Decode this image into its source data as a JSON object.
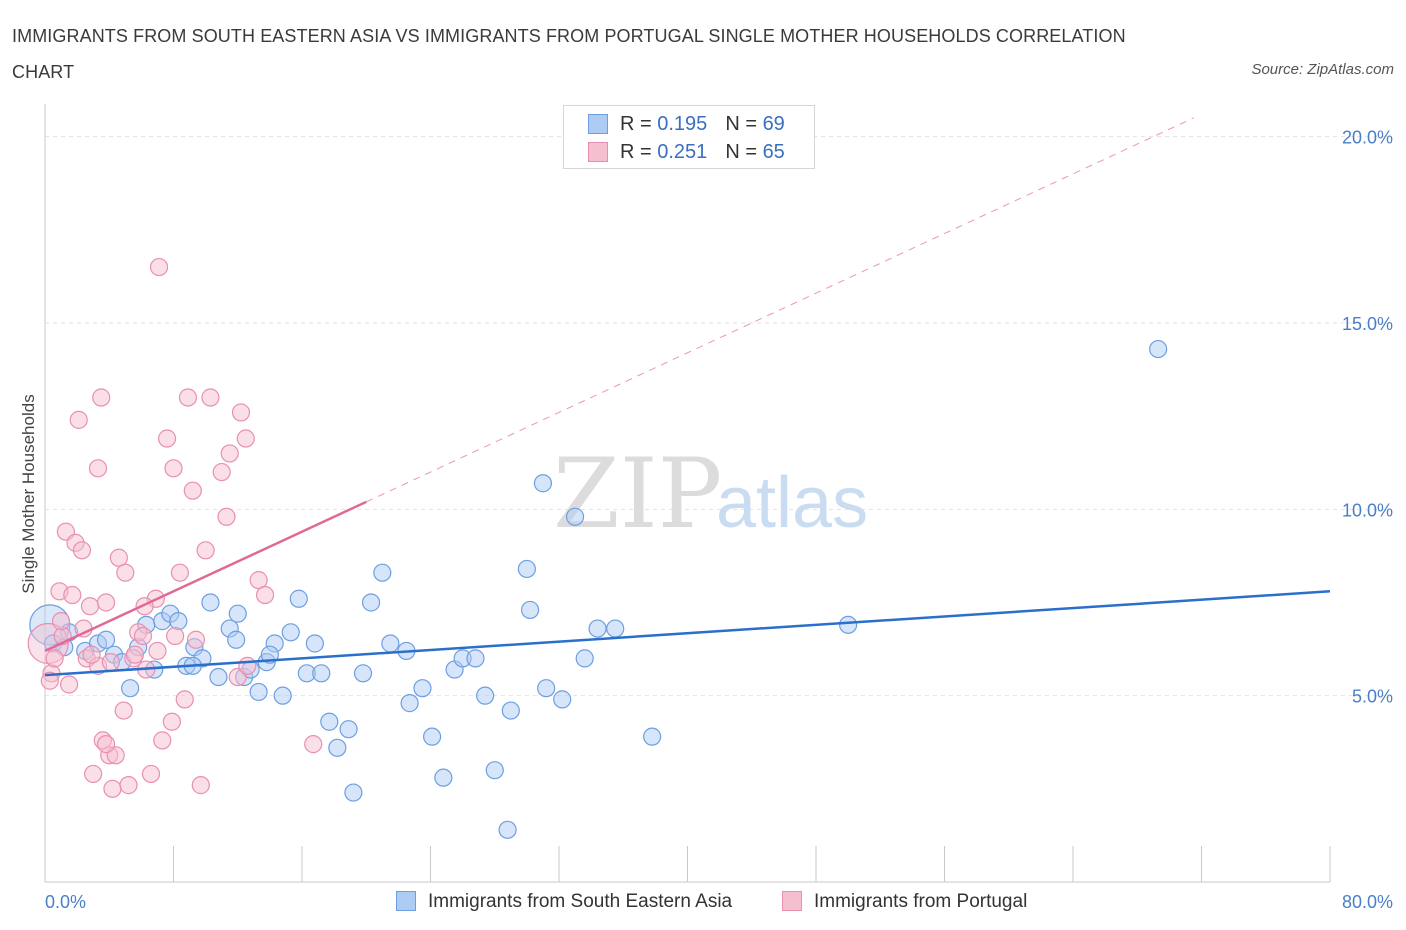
{
  "title": "IMMIGRANTS FROM SOUTH EASTERN ASIA VS IMMIGRANTS FROM PORTUGAL SINGLE MOTHER HOUSEHOLDS CORRELATION CHART",
  "source": "Source: ZipAtlas.com",
  "watermark": {
    "zip": "ZIP",
    "atlas": "atlas"
  },
  "legend": {
    "r_label": "R =",
    "n_label": "N =",
    "rows": [
      {
        "r": "0.195",
        "n": "69"
      },
      {
        "r": "0.251",
        "n": "65"
      }
    ]
  },
  "bottom_legend": [
    {
      "label": "Immigrants from South Eastern Asia"
    },
    {
      "label": "Immigrants from Portugal"
    }
  ],
  "colors": {
    "blue_fill": "#aecbf3",
    "blue_stroke": "#6d9fe0",
    "blue_line": "#2a6fcb",
    "pink_fill": "#f5bfd0",
    "pink_stroke": "#e98fb0",
    "pink_line": "#e06a97",
    "axis_text": "#4a7fc8",
    "grid": "#e2e2e2"
  },
  "chart_data": {
    "type": "scatter",
    "title": "IMMIGRANTS FROM SOUTH EASTERN ASIA VS IMMIGRANTS FROM PORTUGAL SINGLE MOTHER HOUSEHOLDS CORRELATION CHART",
    "xlabel": "",
    "ylabel": "Single Mother Households",
    "xlim": [
      0,
      80
    ],
    "ylim": [
      0,
      20.5
    ],
    "x_tick_labels": [
      "0.0%",
      "80.0%"
    ],
    "y_ticks": [
      5,
      10,
      15,
      20
    ],
    "y_tick_labels": [
      "5.0%",
      "10.0%",
      "15.0%",
      "20.0%"
    ],
    "grid": true,
    "series": [
      {
        "name": "Immigrants from South Eastern Asia",
        "color": "#6d9fe0",
        "trend": {
          "x0": 0,
          "y0": 5.55,
          "x1": 80,
          "y1": 7.8,
          "style": "solid"
        },
        "points": [
          {
            "x": 0.3,
            "y": 6.9,
            "big": true
          },
          {
            "x": 0.5,
            "y": 6.4
          },
          {
            "x": 1.2,
            "y": 6.3
          },
          {
            "x": 1.5,
            "y": 6.7
          },
          {
            "x": 2.5,
            "y": 6.2
          },
          {
            "x": 3.3,
            "y": 6.4
          },
          {
            "x": 3.8,
            "y": 6.5
          },
          {
            "x": 4.3,
            "y": 6.1
          },
          {
            "x": 4.8,
            "y": 5.9
          },
          {
            "x": 5.3,
            "y": 5.2
          },
          {
            "x": 5.8,
            "y": 6.3
          },
          {
            "x": 6.3,
            "y": 6.9
          },
          {
            "x": 6.8,
            "y": 5.7
          },
          {
            "x": 7.3,
            "y": 7.0
          },
          {
            "x": 7.8,
            "y": 7.2
          },
          {
            "x": 8.3,
            "y": 7.0
          },
          {
            "x": 8.8,
            "y": 5.8
          },
          {
            "x": 9.3,
            "y": 6.3
          },
          {
            "x": 9.8,
            "y": 6.0
          },
          {
            "x": 10.3,
            "y": 7.5
          },
          {
            "x": 10.8,
            "y": 5.5
          },
          {
            "x": 11.5,
            "y": 6.8
          },
          {
            "x": 11.9,
            "y": 6.5
          },
          {
            "x": 12.4,
            "y": 5.5
          },
          {
            "x": 12.8,
            "y": 5.7
          },
          {
            "x": 13.3,
            "y": 5.1
          },
          {
            "x": 13.8,
            "y": 5.9
          },
          {
            "x": 14.3,
            "y": 6.4
          },
          {
            "x": 14.8,
            "y": 5.0
          },
          {
            "x": 15.3,
            "y": 6.7
          },
          {
            "x": 15.8,
            "y": 7.6
          },
          {
            "x": 16.3,
            "y": 5.6
          },
          {
            "x": 16.8,
            "y": 6.4
          },
          {
            "x": 17.2,
            "y": 5.6
          },
          {
            "x": 17.7,
            "y": 4.3
          },
          {
            "x": 18.2,
            "y": 3.6
          },
          {
            "x": 18.9,
            "y": 4.1
          },
          {
            "x": 19.2,
            "y": 2.4
          },
          {
            "x": 19.8,
            "y": 5.6
          },
          {
            "x": 20.3,
            "y": 7.5
          },
          {
            "x": 21.0,
            "y": 8.3
          },
          {
            "x": 21.5,
            "y": 6.4
          },
          {
            "x": 22.5,
            "y": 6.2
          },
          {
            "x": 22.7,
            "y": 4.8
          },
          {
            "x": 23.5,
            "y": 5.2
          },
          {
            "x": 24.1,
            "y": 3.9
          },
          {
            "x": 24.8,
            "y": 2.8
          },
          {
            "x": 25.5,
            "y": 5.7
          },
          {
            "x": 26.0,
            "y": 6.0
          },
          {
            "x": 26.8,
            "y": 6.0
          },
          {
            "x": 27.4,
            "y": 5.0
          },
          {
            "x": 28.0,
            "y": 3.0
          },
          {
            "x": 29.0,
            "y": 4.6
          },
          {
            "x": 30.2,
            "y": 7.3
          },
          {
            "x": 31.2,
            "y": 5.2
          },
          {
            "x": 32.2,
            "y": 4.9
          },
          {
            "x": 33.0,
            "y": 9.8
          },
          {
            "x": 33.6,
            "y": 6.0
          },
          {
            "x": 35.5,
            "y": 6.8
          },
          {
            "x": 37.8,
            "y": 3.9
          },
          {
            "x": 50.0,
            "y": 6.9
          },
          {
            "x": 69.3,
            "y": 14.3
          },
          {
            "x": 28.8,
            "y": 1.4
          },
          {
            "x": 31.0,
            "y": 10.7
          },
          {
            "x": 30.0,
            "y": 8.4
          },
          {
            "x": 34.4,
            "y": 6.8
          },
          {
            "x": 9.2,
            "y": 5.8
          },
          {
            "x": 12.0,
            "y": 7.2
          },
          {
            "x": 14.0,
            "y": 6.1
          }
        ]
      },
      {
        "name": "Immigrants from Portugal",
        "color": "#e98fb0",
        "trend": {
          "x0": 0,
          "y0": 6.2,
          "x1": 20,
          "y1": 10.2,
          "style": "solid",
          "dash_to": {
            "x": 80,
            "y": 22.2
          }
        },
        "points": [
          {
            "x": 0.2,
            "y": 6.4,
            "big": true
          },
          {
            "x": 0.4,
            "y": 5.6
          },
          {
            "x": 0.6,
            "y": 6.0
          },
          {
            "x": 0.9,
            "y": 7.8
          },
          {
            "x": 1.1,
            "y": 6.6
          },
          {
            "x": 1.3,
            "y": 9.4
          },
          {
            "x": 1.5,
            "y": 5.3
          },
          {
            "x": 1.7,
            "y": 7.7
          },
          {
            "x": 1.9,
            "y": 9.1
          },
          {
            "x": 2.1,
            "y": 12.4
          },
          {
            "x": 2.3,
            "y": 8.9
          },
          {
            "x": 2.6,
            "y": 6.0
          },
          {
            "x": 2.8,
            "y": 7.4
          },
          {
            "x": 3.0,
            "y": 2.9
          },
          {
            "x": 3.3,
            "y": 5.8
          },
          {
            "x": 3.3,
            "y": 11.1
          },
          {
            "x": 3.5,
            "y": 13.0
          },
          {
            "x": 3.6,
            "y": 3.8
          },
          {
            "x": 3.8,
            "y": 7.5
          },
          {
            "x": 4.0,
            "y": 3.4
          },
          {
            "x": 4.2,
            "y": 2.5
          },
          {
            "x": 4.4,
            "y": 3.4
          },
          {
            "x": 4.6,
            "y": 8.7
          },
          {
            "x": 4.9,
            "y": 4.6
          },
          {
            "x": 5.0,
            "y": 8.3
          },
          {
            "x": 5.2,
            "y": 2.6
          },
          {
            "x": 5.5,
            "y": 6.0
          },
          {
            "x": 5.8,
            "y": 6.7
          },
          {
            "x": 6.1,
            "y": 6.6
          },
          {
            "x": 6.3,
            "y": 5.7
          },
          {
            "x": 6.6,
            "y": 2.9
          },
          {
            "x": 6.9,
            "y": 7.6
          },
          {
            "x": 7.1,
            "y": 16.5
          },
          {
            "x": 7.3,
            "y": 3.8
          },
          {
            "x": 7.6,
            "y": 11.9
          },
          {
            "x": 7.9,
            "y": 4.3
          },
          {
            "x": 8.1,
            "y": 6.6
          },
          {
            "x": 8.4,
            "y": 8.3
          },
          {
            "x": 8.7,
            "y": 4.9
          },
          {
            "x": 8.9,
            "y": 13.0
          },
          {
            "x": 9.2,
            "y": 10.5
          },
          {
            "x": 9.4,
            "y": 6.5
          },
          {
            "x": 9.7,
            "y": 2.6
          },
          {
            "x": 10.0,
            "y": 8.9
          },
          {
            "x": 10.3,
            "y": 13.0
          },
          {
            "x": 11.0,
            "y": 11.0
          },
          {
            "x": 11.3,
            "y": 9.8
          },
          {
            "x": 11.5,
            "y": 11.5
          },
          {
            "x": 12.0,
            "y": 5.5
          },
          {
            "x": 12.2,
            "y": 12.6
          },
          {
            "x": 12.5,
            "y": 11.9
          },
          {
            "x": 13.3,
            "y": 8.1
          },
          {
            "x": 13.7,
            "y": 7.7
          },
          {
            "x": 16.7,
            "y": 3.7
          },
          {
            "x": 8.0,
            "y": 11.1
          },
          {
            "x": 0.3,
            "y": 5.4
          },
          {
            "x": 1.0,
            "y": 7.0
          },
          {
            "x": 2.4,
            "y": 6.8
          },
          {
            "x": 2.9,
            "y": 6.1
          },
          {
            "x": 3.8,
            "y": 3.7
          },
          {
            "x": 4.1,
            "y": 5.9
          },
          {
            "x": 5.6,
            "y": 6.1
          },
          {
            "x": 6.2,
            "y": 7.4
          },
          {
            "x": 7.0,
            "y": 6.2
          },
          {
            "x": 12.6,
            "y": 5.8
          }
        ]
      }
    ]
  }
}
